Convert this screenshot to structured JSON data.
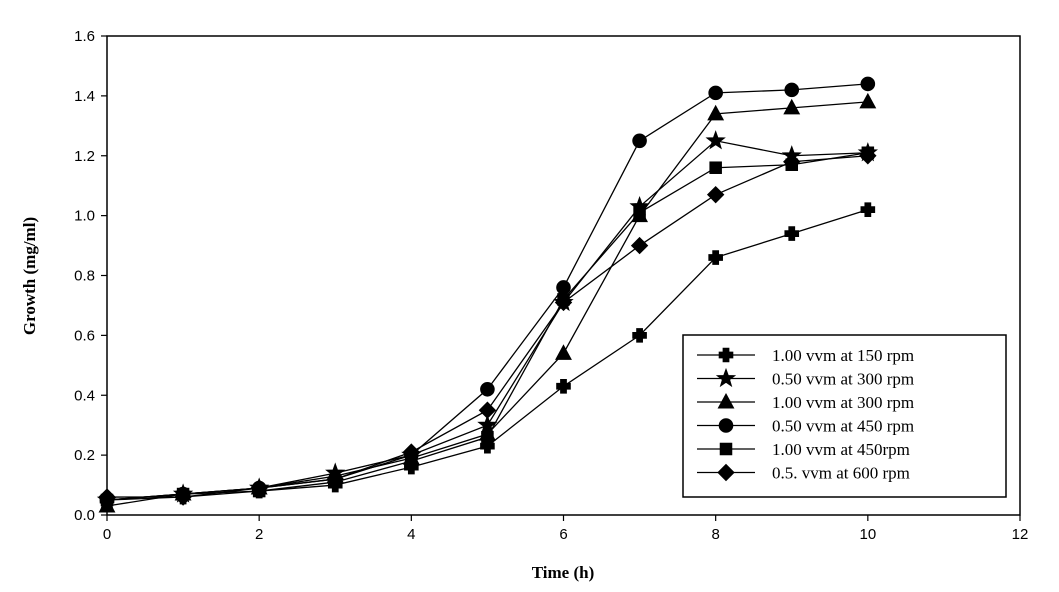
{
  "chart_data": {
    "type": "line",
    "title": "",
    "xlabel": "Time (h)",
    "ylabel": "Growth (mg/ml)",
    "xlim": [
      0,
      12
    ],
    "ylim": [
      0,
      1.6
    ],
    "xticks": [
      "0",
      "2",
      "4",
      "6",
      "8",
      "10",
      "12"
    ],
    "yticks": [
      "0.0",
      "0.2",
      "0.4",
      "0.6",
      "0.8",
      "1.0",
      "1.2",
      "1.4",
      "1.6"
    ],
    "grid": false,
    "legend_position": "bottom-right",
    "line_color": "#000000",
    "series": [
      {
        "name": "1.00 vvm at 150 rpm",
        "marker": "cross",
        "x": [
          0,
          1,
          2,
          3,
          4,
          5,
          6,
          7,
          8,
          9,
          10
        ],
        "y": [
          0.05,
          0.06,
          0.08,
          0.1,
          0.16,
          0.23,
          0.43,
          0.6,
          0.86,
          0.94,
          1.02
        ]
      },
      {
        "name": "0.50 vvm at 300 rpm",
        "marker": "star",
        "x": [
          0,
          1,
          2,
          3,
          4,
          5,
          6,
          7,
          8,
          9,
          10
        ],
        "y": [
          0.05,
          0.07,
          0.09,
          0.14,
          0.2,
          0.3,
          0.71,
          1.03,
          1.25,
          1.2,
          1.21
        ]
      },
      {
        "name": "1.00 vvm at 300 rpm",
        "marker": "triangle",
        "x": [
          0,
          1,
          2,
          3,
          4,
          5,
          6,
          7,
          8,
          9,
          10
        ],
        "y": [
          0.03,
          0.07,
          0.09,
          0.13,
          0.19,
          0.27,
          0.54,
          1.0,
          1.34,
          1.36,
          1.38
        ]
      },
      {
        "name": "0.50 vvm at 450 rpm",
        "marker": "circle",
        "x": [
          0,
          1,
          2,
          3,
          4,
          5,
          6,
          7,
          8,
          9,
          10
        ],
        "y": [
          0.05,
          0.07,
          0.09,
          0.12,
          0.2,
          0.42,
          0.76,
          1.25,
          1.41,
          1.42,
          1.44
        ]
      },
      {
        "name": "1.00 vvm at 450rpm",
        "marker": "square",
        "x": [
          0,
          1,
          2,
          3,
          4,
          5,
          6,
          7,
          8,
          9,
          10
        ],
        "y": [
          0.05,
          0.07,
          0.08,
          0.11,
          0.18,
          0.26,
          0.72,
          1.01,
          1.16,
          1.17,
          1.21
        ]
      },
      {
        "name": "0.5. vvm at 600 rpm",
        "marker": "diamond",
        "x": [
          0,
          1,
          2,
          3,
          4,
          5,
          6,
          7,
          8,
          9,
          10
        ],
        "y": [
          0.06,
          0.06,
          0.09,
          0.12,
          0.21,
          0.35,
          0.71,
          0.9,
          1.07,
          1.18,
          1.2
        ]
      }
    ]
  }
}
